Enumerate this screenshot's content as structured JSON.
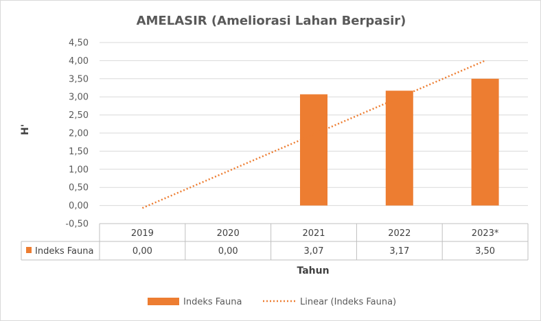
{
  "chart_data": {
    "type": "bar",
    "title": "AMELASIR (Ameliorasi Lahan Berpasir)",
    "xlabel": "Tahun",
    "ylabel": "H'",
    "categories": [
      "2019",
      "2020",
      "2021",
      "2022",
      "2023*"
    ],
    "y_ticks": [
      "4,50",
      "4,00",
      "3,50",
      "3,00",
      "2,50",
      "2,00",
      "1,50",
      "1,00",
      "0,50",
      "0,00",
      "-0,50"
    ],
    "ylim": [
      -0.5,
      4.5
    ],
    "grid": true,
    "series": [
      {
        "name": "Indeks Fauna",
        "values": [
          0.0,
          0.0,
          3.07,
          3.17,
          3.5
        ],
        "value_labels": [
          "0,00",
          "0,00",
          "3,07",
          "3,17",
          "3,50"
        ],
        "color": "#ED7D31"
      }
    ],
    "trendline": {
      "name": "Linear (Indeks Fauna)",
      "type": "linear",
      "start": [
        1,
        -0.07
      ],
      "end": [
        5,
        4.0
      ],
      "color": "#ED7D31",
      "style": "dotted"
    },
    "data_table": true,
    "legend_position": "bottom"
  }
}
